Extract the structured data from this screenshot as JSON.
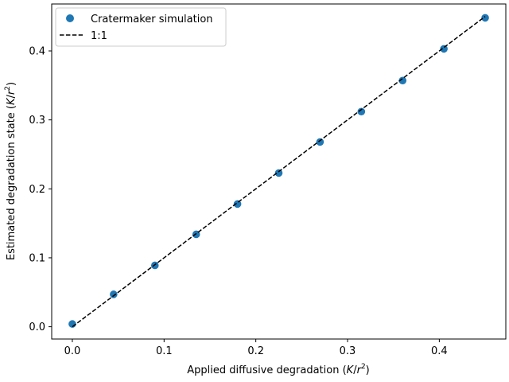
{
  "chart_data": {
    "type": "scatter",
    "xlabel_main": "Applied diffusive degradation (",
    "xlabel_var": "K",
    "xlabel_slash": "/",
    "xlabel_r": "r",
    "xlabel_exp": "2",
    "xlabel_close": ")",
    "ylabel_main": "Estimated degradation state (",
    "ylabel_var": "K",
    "ylabel_slash": "/",
    "ylabel_r": "r",
    "ylabel_exp": "2",
    "ylabel_close": ")",
    "xlim": [
      -0.0225,
      0.4725
    ],
    "ylim": [
      -0.0178,
      0.4681
    ],
    "xticks": [
      0.0,
      0.1,
      0.2,
      0.3,
      0.4
    ],
    "xtick_labels": [
      "0.0",
      "0.1",
      "0.2",
      "0.3",
      "0.4"
    ],
    "yticks": [
      0.0,
      0.1,
      0.2,
      0.3,
      0.4
    ],
    "ytick_labels": [
      "0.0",
      "0.1",
      "0.2",
      "0.3",
      "0.4"
    ],
    "grid": false,
    "legend_position": "top-left",
    "series": [
      {
        "name": "Cratermaker simulation",
        "kind": "scatter",
        "color": "#1f77b4",
        "x": [
          0.0,
          0.045,
          0.09,
          0.135,
          0.18,
          0.225,
          0.27,
          0.315,
          0.36,
          0.405,
          0.45
        ],
        "y": [
          0.004,
          0.047,
          0.089,
          0.134,
          0.178,
          0.223,
          0.268,
          0.312,
          0.357,
          0.403,
          0.448
        ]
      },
      {
        "name": "1:1",
        "kind": "line",
        "style": "dashed",
        "color": "#000000",
        "x": [
          0.0,
          0.45
        ],
        "y": [
          0.0,
          0.45
        ]
      }
    ]
  }
}
